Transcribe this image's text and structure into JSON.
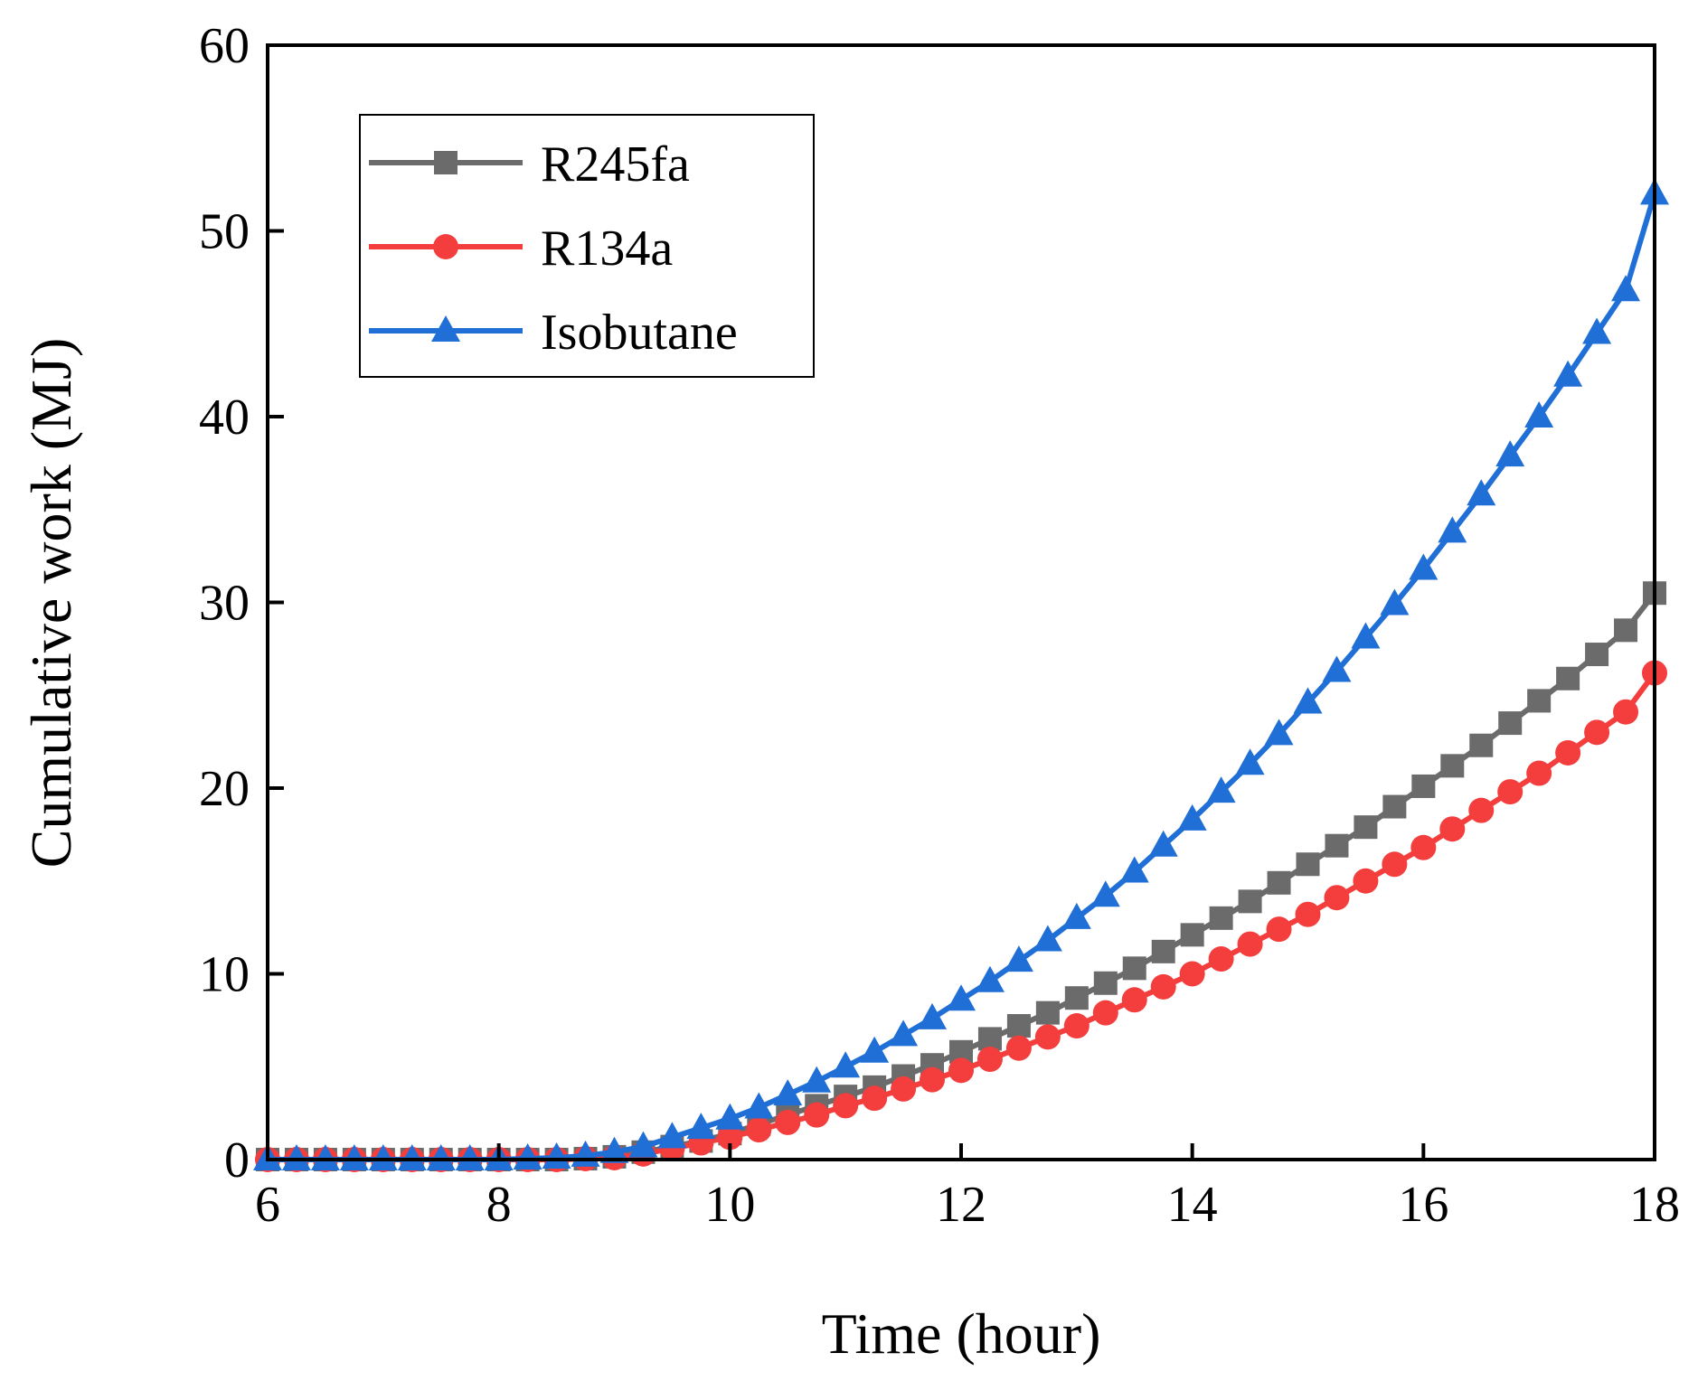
{
  "chart_data": {
    "type": "line",
    "title": "",
    "xlabel": "Time (hour)",
    "ylabel": "Cumulative work (MJ)",
    "xlim": [
      6,
      18
    ],
    "ylim": [
      0,
      60
    ],
    "xticks": [
      6,
      8,
      10,
      12,
      14,
      16,
      18
    ],
    "yticks": [
      0,
      10,
      20,
      30,
      40,
      50,
      60
    ],
    "legend_position": "top-left",
    "grid": false,
    "x": [
      6,
      6.25,
      6.5,
      6.75,
      7,
      7.25,
      7.5,
      7.75,
      8,
      8.25,
      8.5,
      8.75,
      9,
      9.25,
      9.5,
      9.75,
      10,
      10.25,
      10.5,
      10.75,
      11,
      11.25,
      11.5,
      11.75,
      12,
      12.25,
      12.5,
      12.75,
      13,
      13.25,
      13.5,
      13.75,
      14,
      14.25,
      14.5,
      14.75,
      15,
      15.25,
      15.5,
      15.75,
      16,
      16.25,
      16.5,
      16.75,
      17,
      17.25,
      17.5,
      17.75,
      18
    ],
    "series": [
      {
        "name": "R245fa",
        "color": "#6b6b6b",
        "marker": "square",
        "values": [
          0,
          0,
          0,
          0,
          0,
          0,
          0,
          0,
          0,
          0,
          0,
          0.05,
          0.15,
          0.4,
          0.7,
          1.0,
          1.4,
          1.9,
          2.4,
          2.9,
          3.4,
          3.9,
          4.5,
          5.1,
          5.8,
          6.5,
          7.2,
          7.9,
          8.7,
          9.5,
          10.3,
          11.2,
          12.1,
          13.0,
          13.9,
          14.9,
          15.9,
          16.9,
          17.9,
          19.0,
          20.1,
          21.2,
          22.3,
          23.5,
          24.7,
          25.9,
          27.2,
          28.5,
          30.5
        ]
      },
      {
        "name": "R134a",
        "color": "#f43d3d",
        "marker": "circle",
        "values": [
          0,
          0,
          0,
          0,
          0,
          0,
          0,
          0,
          0,
          0,
          0,
          0.05,
          0.1,
          0.3,
          0.6,
          0.9,
          1.2,
          1.6,
          2.0,
          2.4,
          2.9,
          3.3,
          3.8,
          4.3,
          4.8,
          5.4,
          6.0,
          6.6,
          7.2,
          7.9,
          8.6,
          9.3,
          10.0,
          10.8,
          11.6,
          12.4,
          13.2,
          14.1,
          15.0,
          15.9,
          16.8,
          17.8,
          18.8,
          19.8,
          20.8,
          21.9,
          23.0,
          24.1,
          26.2
        ]
      },
      {
        "name": "Isobutane",
        "color": "#1f6fd6",
        "marker": "triangle",
        "values": [
          0,
          0,
          0,
          0,
          0,
          0,
          0,
          0,
          0,
          0.05,
          0.1,
          0.2,
          0.4,
          0.7,
          1.2,
          1.7,
          2.2,
          2.8,
          3.5,
          4.2,
          5.0,
          5.8,
          6.7,
          7.6,
          8.6,
          9.6,
          10.7,
          11.8,
          13.0,
          14.2,
          15.5,
          16.9,
          18.3,
          19.8,
          21.3,
          22.9,
          24.6,
          26.3,
          28.1,
          29.9,
          31.8,
          33.8,
          35.8,
          37.9,
          40.0,
          42.2,
          44.5,
          46.8,
          52.0
        ]
      }
    ]
  }
}
